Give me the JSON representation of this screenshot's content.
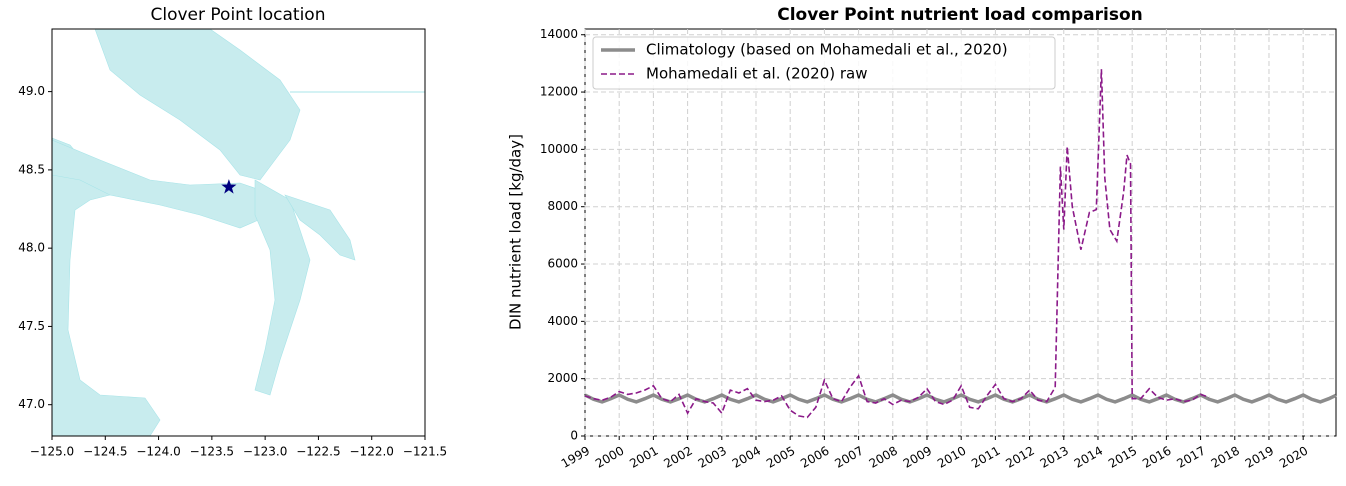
{
  "chart_data": [
    {
      "type": "map",
      "title": "Clover Point location",
      "xlim": [
        -125,
        -121.5
      ],
      "xticks": [
        {
          "value": -125,
          "label": "−125.0"
        },
        {
          "value": -124.5,
          "label": "−124.5"
        },
        {
          "value": -124,
          "label": "−124.0"
        },
        {
          "value": -123.5,
          "label": "−123.5"
        },
        {
          "value": -123,
          "label": "−123.0"
        },
        {
          "value": -122.5,
          "label": "−122.5"
        },
        {
          "value": -122,
          "label": "−122.0"
        },
        {
          "value": -121.5,
          "label": "−121.5"
        }
      ],
      "ylim": [
        46.8,
        49.4
      ],
      "yticks": [
        {
          "value": 47,
          "label": "47.0"
        },
        47.5,
        {
          "value": 48,
          "label": "48.0"
        },
        48.5,
        {
          "value": 49,
          "label": "49.0"
        }
      ],
      "points": {
        "x": [
          -123.34
        ],
        "y": [
          48.39
        ],
        "color": "#000080",
        "marker": "star"
      }
    },
    {
      "type": "line",
      "title": "Clover Point nutrient load comparison",
      "ylabel": "DIN nutrient load [kg/day]",
      "xlim": [
        1999,
        2020.96
      ],
      "xticks": [
        1999,
        2000,
        2001,
        2002,
        2003,
        2004,
        2005,
        2006,
        2007,
        2008,
        2009,
        2010,
        2011,
        2012,
        2013,
        2014,
        2015,
        2016,
        2017,
        2018,
        2019,
        2020
      ],
      "ylim": [
        0,
        14200
      ],
      "yticks": [
        0,
        2000,
        4000,
        6000,
        8000,
        10000,
        12000,
        14000
      ],
      "grid": true,
      "legend": "upper left",
      "series": [
        {
          "name": "Climatology (based on Mohamedali et al., 2020)",
          "color": "#8c8c8c",
          "style": "solid",
          "x": [
            1999,
            1999.25,
            1999.5,
            1999.75,
            2000,
            2000.25,
            2000.5,
            2000.75,
            2001,
            2001.25,
            2001.5,
            2001.75,
            2002,
            2002.25,
            2002.5,
            2002.75,
            2003,
            2003.25,
            2003.5,
            2003.75,
            2004,
            2004.25,
            2004.5,
            2004.75,
            2005,
            2005.25,
            2005.5,
            2005.75,
            2006,
            2006.25,
            2006.5,
            2006.75,
            2007,
            2007.25,
            2007.5,
            2007.75,
            2008,
            2008.25,
            2008.5,
            2008.75,
            2009,
            2009.25,
            2009.5,
            2009.75,
            2010,
            2010.25,
            2010.5,
            2010.75,
            2011,
            2011.25,
            2011.5,
            2011.75,
            2012,
            2012.25,
            2012.5,
            2012.75,
            2013,
            2013.25,
            2013.5,
            2013.75,
            2014,
            2014.25,
            2014.5,
            2014.75,
            2015,
            2015.25,
            2015.5,
            2015.75,
            2016,
            2016.25,
            2016.5,
            2016.75,
            2017,
            2017.25,
            2017.5,
            2017.75,
            2018,
            2018.25,
            2018.5,
            2018.75,
            2019,
            2019.25,
            2019.5,
            2019.75,
            2020,
            2020.25,
            2020.5,
            2020.75,
            2020.96
          ],
          "values": [
            1430,
            1280,
            1190,
            1300,
            1430,
            1280,
            1190,
            1300,
            1430,
            1280,
            1190,
            1300,
            1430,
            1280,
            1190,
            1300,
            1430,
            1280,
            1190,
            1300,
            1430,
            1280,
            1190,
            1300,
            1430,
            1280,
            1190,
            1300,
            1430,
            1280,
            1190,
            1300,
            1430,
            1280,
            1190,
            1300,
            1430,
            1280,
            1190,
            1300,
            1430,
            1280,
            1190,
            1300,
            1430,
            1280,
            1190,
            1300,
            1430,
            1280,
            1190,
            1300,
            1430,
            1280,
            1190,
            1300,
            1430,
            1280,
            1190,
            1300,
            1430,
            1280,
            1190,
            1300,
            1430,
            1280,
            1190,
            1300,
            1430,
            1280,
            1190,
            1300,
            1430,
            1280,
            1190,
            1300,
            1430,
            1280,
            1190,
            1300,
            1430,
            1280,
            1190,
            1300,
            1430,
            1280,
            1190,
            1300,
            1420
          ]
        },
        {
          "name": "Mohamedali et al. (2020) raw",
          "color": "#8b1a89",
          "style": "dashed",
          "x": [
            1999,
            1999.25,
            1999.5,
            1999.75,
            2000,
            2000.25,
            2000.5,
            2000.75,
            2001,
            2001.25,
            2001.5,
            2001.75,
            2002,
            2002.25,
            2002.5,
            2002.75,
            2003,
            2003.25,
            2003.5,
            2003.75,
            2004,
            2004.25,
            2004.5,
            2004.75,
            2005,
            2005.25,
            2005.5,
            2005.75,
            2006,
            2006.25,
            2006.5,
            2006.75,
            2007,
            2007.25,
            2007.5,
            2007.75,
            2008,
            2008.25,
            2008.5,
            2008.75,
            2009,
            2009.25,
            2009.5,
            2009.75,
            2010,
            2010.25,
            2010.5,
            2010.75,
            2011,
            2011.25,
            2011.5,
            2011.75,
            2012,
            2012.25,
            2012.5,
            2012.75,
            2012.9,
            2013,
            2013.1,
            2013.25,
            2013.5,
            2013.75,
            2013.95,
            2014.1,
            2014.2,
            2014.35,
            2014.55,
            2014.75,
            2014.85,
            2014.95,
            2015,
            2015.25,
            2015.5,
            2015.75,
            2016,
            2016.25,
            2016.5,
            2016.75,
            2017,
            2017.25
          ],
          "values": [
            1400,
            1300,
            1250,
            1350,
            1550,
            1450,
            1500,
            1600,
            1750,
            1300,
            1200,
            1450,
            800,
            1300,
            1200,
            1150,
            800,
            1600,
            1500,
            1650,
            1250,
            1200,
            1250,
            1400,
            900,
            700,
            650,
            1000,
            1950,
            1300,
            1200,
            1700,
            2100,
            1200,
            1150,
            1300,
            1100,
            1250,
            1200,
            1350,
            1650,
            1200,
            1100,
            1250,
            1750,
            1000,
            950,
            1400,
            1800,
            1300,
            1200,
            1300,
            1600,
            1250,
            1200,
            1700,
            9400,
            7200,
            10100,
            8000,
            6500,
            7800,
            7900,
            12800,
            9000,
            7200,
            6800,
            8500,
            9800,
            9500,
            1300,
            1300,
            1650,
            1350,
            1250,
            1300,
            1200,
            1250,
            1450,
            1350
          ]
        }
      ]
    }
  ]
}
